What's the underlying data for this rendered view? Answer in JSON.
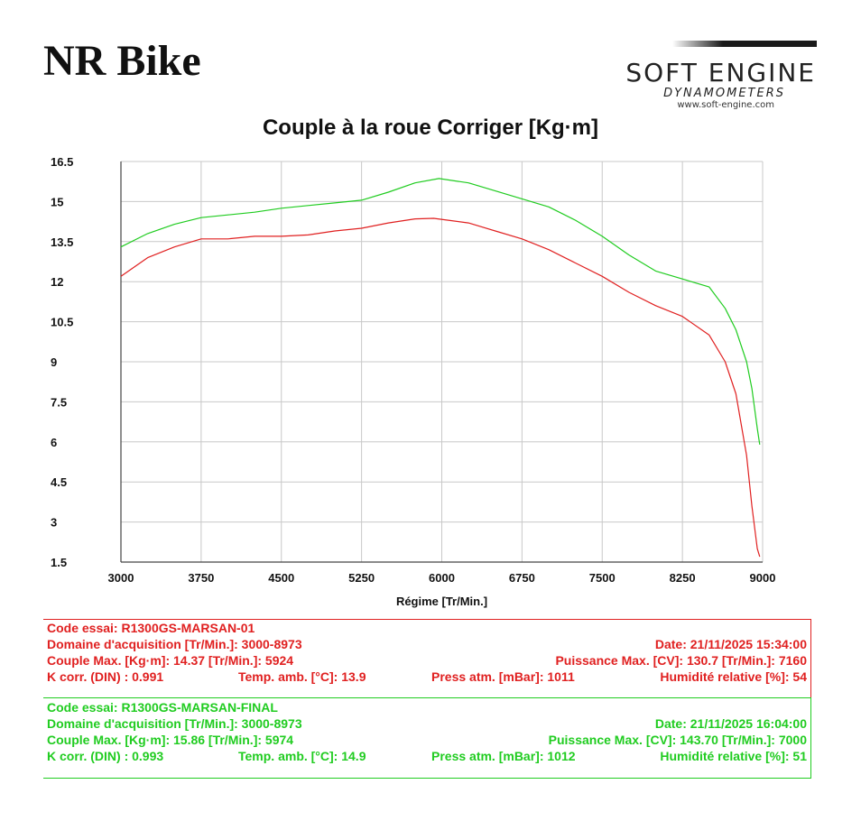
{
  "header": {
    "brand": "NR Bike",
    "logo_word": "SOFT ENGINE",
    "logo_sub": "DYNAMOMETERS",
    "logo_url": "www.soft-engine.com"
  },
  "chart_data": {
    "type": "line",
    "title": "Couple à la roue Corriger [Kg·m]",
    "xlabel": "Régime [Tr/Min.]",
    "ylabel": "",
    "xlim": [
      3000,
      9000
    ],
    "ylim": [
      1.5,
      16.5
    ],
    "xticks": [
      "3000",
      "3750",
      "4500",
      "5250",
      "6000",
      "6750",
      "7500",
      "8250",
      "9000"
    ],
    "yticks": [
      "16.5",
      "15",
      "13.5",
      "12",
      "10.5",
      "9",
      "7.5",
      "6",
      "4.5",
      "3",
      "1.5"
    ],
    "grid": true,
    "series": [
      {
        "color": "#e02020",
        "x": [
          3000,
          3250,
          3500,
          3750,
          4000,
          4250,
          4500,
          4750,
          5000,
          5250,
          5500,
          5750,
          5924,
          6250,
          6500,
          6750,
          7000,
          7250,
          7500,
          7750,
          8000,
          8250,
          8500,
          8650,
          8750,
          8850,
          8900,
          8950,
          8973
        ],
        "y": [
          12.2,
          12.9,
          13.3,
          13.6,
          13.6,
          13.7,
          13.7,
          13.75,
          13.9,
          14.0,
          14.2,
          14.35,
          14.37,
          14.2,
          13.9,
          13.6,
          13.2,
          12.7,
          12.2,
          11.6,
          11.1,
          10.7,
          10.0,
          9.0,
          7.8,
          5.5,
          3.6,
          2.0,
          1.7
        ]
      },
      {
        "color": "#20cc20",
        "x": [
          3000,
          3250,
          3500,
          3750,
          4000,
          4250,
          4500,
          4750,
          5000,
          5250,
          5500,
          5750,
          5974,
          6250,
          6500,
          6750,
          7000,
          7250,
          7500,
          7750,
          8000,
          8250,
          8500,
          8650,
          8750,
          8850,
          8900,
          8950,
          8973
        ],
        "y": [
          13.3,
          13.8,
          14.15,
          14.4,
          14.5,
          14.6,
          14.75,
          14.85,
          14.95,
          15.05,
          15.35,
          15.7,
          15.86,
          15.7,
          15.4,
          15.1,
          14.8,
          14.3,
          13.7,
          13.0,
          12.4,
          12.1,
          11.8,
          11.0,
          10.2,
          9.0,
          8.0,
          6.5,
          5.9
        ]
      }
    ]
  },
  "test_red": {
    "color": "#e02020",
    "code": "Code essai: R1300GS-MARSAN-01",
    "domaine": "Domaine d'acquisition [Tr/Min.]: 3000-8973",
    "date": "Date: 21/11/2025   15:34:00",
    "couple": "Couple Max. [Kg·m]: 14.37   [Tr/Min.]: 5924",
    "puissance": "Puissance Max. [CV]: 130.7   [Tr/Min.]: 7160",
    "kcorr": "K corr. (DIN) : 0.991",
    "temp": "Temp. amb. [°C]: 13.9",
    "press": "Press atm. [mBar]: 1011",
    "hum": "Humidité relative [%]: 54"
  },
  "test_green": {
    "color": "#20cc20",
    "code": "Code essai: R1300GS-MARSAN-FINAL",
    "domaine": "Domaine d'acquisition [Tr/Min.]: 3000-8973",
    "date": "Date: 21/11/2025   16:04:00",
    "couple": "Couple Max. [Kg·m]: 15.86   [Tr/Min.]: 5974",
    "puissance": "Puissance Max. [CV]: 143.70   [Tr/Min.]: 7000",
    "kcorr": "K corr. (DIN) : 0.993",
    "temp": "Temp. amb. [°C]: 14.9",
    "press": "Press atm. [mBar]: 1012",
    "hum": "Humidité relative [%]: 51"
  }
}
